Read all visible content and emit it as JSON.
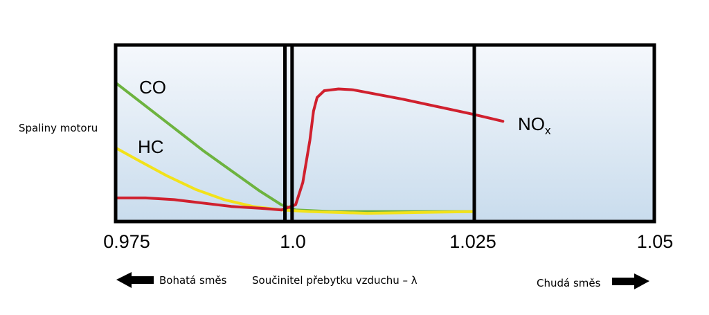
{
  "chart_data": {
    "type": "line",
    "ylabel": "Spaliny motoru",
    "xlabel": "Součinitel přebytku vzduchu – λ",
    "xlim": [
      0.975,
      1.05
    ],
    "ylim": [
      0,
      1
    ],
    "x_ticks": [
      "0.975",
      "1.0",
      "1.025",
      "1.05"
    ],
    "vertical_lines": [
      0.9985,
      0.9995,
      1.025
    ],
    "legend_left": "Bohatá směs",
    "legend_right": "Chudá směs",
    "series": [
      {
        "name": "CO",
        "color": "#6db33f",
        "points": [
          [
            0.975,
            0.78
          ],
          [
            0.979,
            0.65
          ],
          [
            0.983,
            0.52
          ],
          [
            0.987,
            0.39
          ],
          [
            0.991,
            0.27
          ],
          [
            0.995,
            0.15
          ],
          [
            0.998,
            0.07
          ],
          [
            1.0,
            0.04
          ],
          [
            1.005,
            0.03
          ],
          [
            1.025,
            0.03
          ]
        ]
      },
      {
        "name": "HC",
        "color": "#f2e21a",
        "points": [
          [
            0.975,
            0.4
          ],
          [
            0.978,
            0.33
          ],
          [
            0.982,
            0.24
          ],
          [
            0.986,
            0.16
          ],
          [
            0.99,
            0.1
          ],
          [
            0.994,
            0.06
          ],
          [
            0.998,
            0.04
          ],
          [
            1.002,
            0.03
          ],
          [
            1.01,
            0.02
          ],
          [
            1.025,
            0.03
          ]
        ]
      },
      {
        "name": "NO",
        "name_sub": "x",
        "color": "#d0202e",
        "points": [
          [
            0.975,
            0.11
          ],
          [
            0.979,
            0.11
          ],
          [
            0.983,
            0.1
          ],
          [
            0.987,
            0.08
          ],
          [
            0.991,
            0.06
          ],
          [
            0.995,
            0.05
          ],
          [
            0.998,
            0.04
          ],
          [
            1.0,
            0.07
          ],
          [
            1.001,
            0.2
          ],
          [
            1.002,
            0.45
          ],
          [
            1.0025,
            0.62
          ],
          [
            1.003,
            0.7
          ],
          [
            1.004,
            0.74
          ],
          [
            1.006,
            0.75
          ],
          [
            1.008,
            0.745
          ],
          [
            1.015,
            0.69
          ],
          [
            1.025,
            0.6
          ],
          [
            1.029,
            0.56
          ]
        ]
      }
    ]
  }
}
